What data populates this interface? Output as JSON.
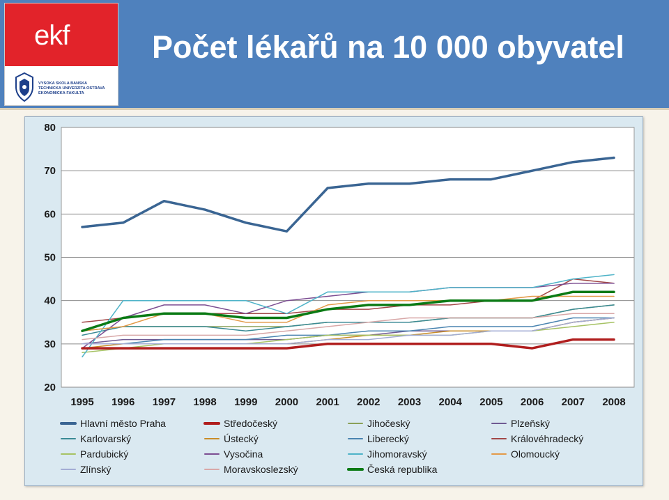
{
  "header": {
    "title": "Počet lékařů na 10 000 obyvatel",
    "logo_mark": "ekf",
    "university_lines": [
      "VYSOKÁ ŠKOLA BÁŇSKÁ",
      "TECHNICKÁ UNIVERZITA OSTRAVA",
      "EKONOMICKÁ FAKULTA"
    ]
  },
  "colors": {
    "header_bg": "#4f81bd",
    "logo_red": "#e2232a",
    "plot_bg": "#ffffff",
    "chart_bg": "#dae9f1"
  },
  "chart_data": {
    "type": "line",
    "x": [
      "1995",
      "1996",
      "1997",
      "1998",
      "1999",
      "2000",
      "2001",
      "2002",
      "2003",
      "2004",
      "2005",
      "2006",
      "2007",
      "2008"
    ],
    "ylim": [
      20,
      80
    ],
    "yticks": [
      "20",
      "30",
      "40",
      "50",
      "60",
      "70",
      "80"
    ],
    "grid": true,
    "legend_position": "bottom",
    "series": [
      {
        "name": "Hlavní město Praha",
        "color": "#3a6593",
        "width": 3.5,
        "values": [
          57,
          58,
          63,
          61,
          58,
          56,
          66,
          67,
          67,
          68,
          68,
          70,
          72,
          73
        ]
      },
      {
        "name": "Středočeský",
        "color": "#b01e1e",
        "width": 3.5,
        "values": [
          29,
          29,
          29,
          29,
          29,
          29,
          30,
          30,
          30,
          30,
          30,
          29,
          31,
          31
        ]
      },
      {
        "name": "Jihočeský",
        "color": "#8aa058",
        "width": 1.5,
        "values": [
          33,
          34,
          34,
          34,
          34,
          34,
          35,
          35,
          35,
          36,
          36,
          36,
          38,
          39
        ]
      },
      {
        "name": "Plzeňský",
        "color": "#6f5a93",
        "width": 1.5,
        "values": [
          30,
          31,
          31,
          31,
          31,
          31,
          32,
          32,
          33,
          33,
          33,
          33,
          35,
          36
        ]
      },
      {
        "name": "Karlovarský",
        "color": "#3a8a95",
        "width": 1.5,
        "values": [
          32,
          34,
          34,
          34,
          33,
          34,
          35,
          35,
          35,
          36,
          36,
          36,
          38,
          39
        ]
      },
      {
        "name": "Ústecký",
        "color": "#c98c28",
        "width": 1.5,
        "values": [
          29,
          30,
          30,
          30,
          30,
          30,
          31,
          32,
          32,
          33,
          33,
          33,
          35,
          36
        ]
      },
      {
        "name": "Liberecký",
        "color": "#4a84b0",
        "width": 1.5,
        "values": [
          30,
          30,
          31,
          31,
          31,
          32,
          32,
          33,
          33,
          34,
          34,
          34,
          36,
          36
        ]
      },
      {
        "name": "Královéhradecký",
        "color": "#a24848",
        "width": 1.5,
        "values": [
          35,
          36,
          37,
          37,
          37,
          37,
          38,
          38,
          39,
          39,
          40,
          40,
          45,
          44
        ]
      },
      {
        "name": "Pardubický",
        "color": "#a6c264",
        "width": 1.5,
        "values": [
          28,
          29,
          30,
          30,
          30,
          31,
          32,
          32,
          32,
          32,
          33,
          33,
          34,
          35
        ]
      },
      {
        "name": "Vysočina",
        "color": "#7c4e92",
        "width": 1.5,
        "values": [
          29,
          36,
          39,
          39,
          37,
          40,
          41,
          42,
          42,
          43,
          43,
          43,
          44,
          44
        ]
      },
      {
        "name": "Jihomoravský",
        "color": "#4eb3c8",
        "width": 1.5,
        "values": [
          27,
          40,
          40,
          40,
          40,
          37,
          42,
          42,
          42,
          43,
          43,
          43,
          45,
          46
        ]
      },
      {
        "name": "Olomoucký",
        "color": "#e39a48",
        "width": 1.5,
        "values": [
          33,
          34,
          37,
          37,
          35,
          35,
          39,
          40,
          40,
          40,
          40,
          41,
          41,
          41
        ]
      },
      {
        "name": "Zlínský",
        "color": "#a3acd4",
        "width": 1.5,
        "values": [
          30,
          30,
          30,
          30,
          30,
          30,
          31,
          31,
          32,
          32,
          33,
          33,
          35,
          36
        ]
      },
      {
        "name": "Moravskoslezský",
        "color": "#d8a8a8",
        "width": 1.5,
        "values": [
          31,
          32,
          32,
          32,
          32,
          33,
          34,
          35,
          36,
          36,
          36,
          36,
          37,
          37
        ]
      },
      {
        "name": "Česká republika",
        "color": "#0a7a14",
        "width": 3.5,
        "values": [
          33,
          36,
          37,
          37,
          36,
          36,
          38,
          39,
          39,
          40,
          40,
          40,
          42,
          42
        ]
      }
    ]
  }
}
